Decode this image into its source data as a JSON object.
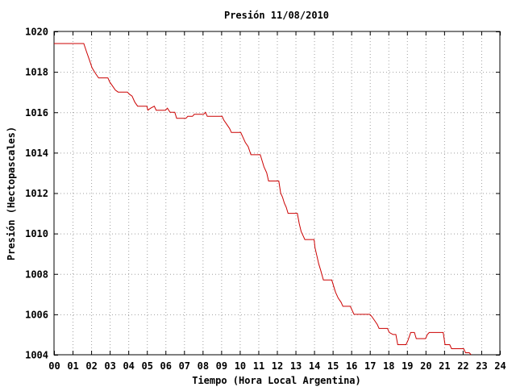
{
  "chart_data": {
    "type": "line",
    "title": "Presión 11/08/2010",
    "xlabel": "Tiempo (Hora Local Argentina)",
    "ylabel": "Presión (Hectopascales)",
    "xlim": [
      0,
      24
    ],
    "ylim": [
      1004,
      1020
    ],
    "xticks": [
      "00",
      "01",
      "02",
      "03",
      "04",
      "05",
      "06",
      "07",
      "08",
      "09",
      "10",
      "11",
      "12",
      "13",
      "14",
      "15",
      "16",
      "17",
      "18",
      "19",
      "20",
      "21",
      "22",
      "23",
      "24"
    ],
    "yticks": [
      "1004",
      "1006",
      "1008",
      "1010",
      "1012",
      "1014",
      "1016",
      "1018",
      "1020"
    ],
    "grid": true,
    "series": [
      {
        "color": "#cc0000",
        "points": [
          [
            0.0,
            1019.4
          ],
          [
            1.6,
            1019.4
          ],
          [
            1.75,
            1019.0
          ],
          [
            1.9,
            1018.6
          ],
          [
            2.05,
            1018.2
          ],
          [
            2.25,
            1017.9
          ],
          [
            2.4,
            1017.7
          ],
          [
            2.9,
            1017.7
          ],
          [
            3.0,
            1017.5
          ],
          [
            3.15,
            1017.3
          ],
          [
            3.3,
            1017.1
          ],
          [
            3.45,
            1017.0
          ],
          [
            3.95,
            1017.0
          ],
          [
            4.05,
            1016.9
          ],
          [
            4.2,
            1016.8
          ],
          [
            4.35,
            1016.5
          ],
          [
            4.5,
            1016.3
          ],
          [
            5.0,
            1016.3
          ],
          [
            5.05,
            1016.1
          ],
          [
            5.2,
            1016.2
          ],
          [
            5.4,
            1016.3
          ],
          [
            5.5,
            1016.1
          ],
          [
            6.0,
            1016.1
          ],
          [
            6.1,
            1016.2
          ],
          [
            6.25,
            1016.0
          ],
          [
            6.5,
            1016.0
          ],
          [
            6.6,
            1015.7
          ],
          [
            7.1,
            1015.7
          ],
          [
            7.2,
            1015.8
          ],
          [
            7.45,
            1015.8
          ],
          [
            7.55,
            1015.9
          ],
          [
            8.05,
            1015.9
          ],
          [
            8.15,
            1016.0
          ],
          [
            8.25,
            1015.8
          ],
          [
            9.05,
            1015.8
          ],
          [
            9.15,
            1015.6
          ],
          [
            9.3,
            1015.4
          ],
          [
            9.45,
            1015.2
          ],
          [
            9.55,
            1015.0
          ],
          [
            10.05,
            1015.0
          ],
          [
            10.15,
            1014.8
          ],
          [
            10.3,
            1014.5
          ],
          [
            10.45,
            1014.3
          ],
          [
            10.6,
            1013.9
          ],
          [
            11.1,
            1013.9
          ],
          [
            11.2,
            1013.6
          ],
          [
            11.3,
            1013.3
          ],
          [
            11.45,
            1013.0
          ],
          [
            11.55,
            1012.6
          ],
          [
            12.1,
            1012.6
          ],
          [
            12.2,
            1012.0
          ],
          [
            12.3,
            1011.8
          ],
          [
            12.4,
            1011.5
          ],
          [
            12.5,
            1011.3
          ],
          [
            12.6,
            1011.0
          ],
          [
            13.1,
            1011.0
          ],
          [
            13.2,
            1010.5
          ],
          [
            13.3,
            1010.1
          ],
          [
            13.4,
            1009.9
          ],
          [
            13.5,
            1009.7
          ],
          [
            14.0,
            1009.7
          ],
          [
            14.05,
            1009.3
          ],
          [
            14.15,
            1008.9
          ],
          [
            14.25,
            1008.5
          ],
          [
            14.35,
            1008.2
          ],
          [
            14.5,
            1007.7
          ],
          [
            14.95,
            1007.7
          ],
          [
            15.05,
            1007.4
          ],
          [
            15.15,
            1007.1
          ],
          [
            15.3,
            1006.8
          ],
          [
            15.45,
            1006.6
          ],
          [
            15.55,
            1006.4
          ],
          [
            15.95,
            1006.4
          ],
          [
            16.05,
            1006.2
          ],
          [
            16.15,
            1006.0
          ],
          [
            17.0,
            1006.0
          ],
          [
            17.1,
            1005.9
          ],
          [
            17.25,
            1005.7
          ],
          [
            17.4,
            1005.5
          ],
          [
            17.5,
            1005.3
          ],
          [
            17.95,
            1005.3
          ],
          [
            18.05,
            1005.1
          ],
          [
            18.25,
            1005.0
          ],
          [
            18.4,
            1005.0
          ],
          [
            18.5,
            1004.5
          ],
          [
            18.95,
            1004.5
          ],
          [
            19.05,
            1004.7
          ],
          [
            19.2,
            1005.1
          ],
          [
            19.4,
            1005.1
          ],
          [
            19.5,
            1004.8
          ],
          [
            20.0,
            1004.8
          ],
          [
            20.1,
            1005.0
          ],
          [
            20.2,
            1005.1
          ],
          [
            20.95,
            1005.1
          ],
          [
            21.05,
            1004.5
          ],
          [
            21.3,
            1004.5
          ],
          [
            21.4,
            1004.3
          ],
          [
            22.05,
            1004.3
          ],
          [
            22.15,
            1004.1
          ],
          [
            22.35,
            1004.1
          ],
          [
            22.45,
            1004.0
          ]
        ]
      }
    ]
  }
}
